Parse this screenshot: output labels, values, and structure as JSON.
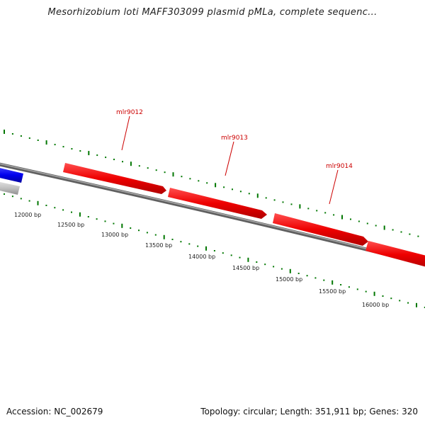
{
  "title": "Mesorhizobium loti MAFF303099 plasmid pMLa, complete sequenc...",
  "footer": {
    "accession": "Accession: NC_002679",
    "summary": "Topology: circular; Length: 351,911 bp; Genes: 320"
  },
  "colors": {
    "backbone": "#808080",
    "gene_forward": "#ff0000",
    "gene_blue": "#0000ff",
    "gene_gray": "#c0c0c0",
    "tick": "#007700",
    "gene_label": "#cc0000"
  },
  "genes": [
    {
      "label": "mlr9012"
    },
    {
      "label": "mlr9013"
    },
    {
      "label": "mlr9014"
    }
  ],
  "bp_labels": [
    "12000 bp",
    "12500 bp",
    "13000 bp",
    "13500 bp",
    "14000 bp",
    "14500 bp",
    "15000 bp",
    "15500 bp",
    "16000 bp"
  ]
}
